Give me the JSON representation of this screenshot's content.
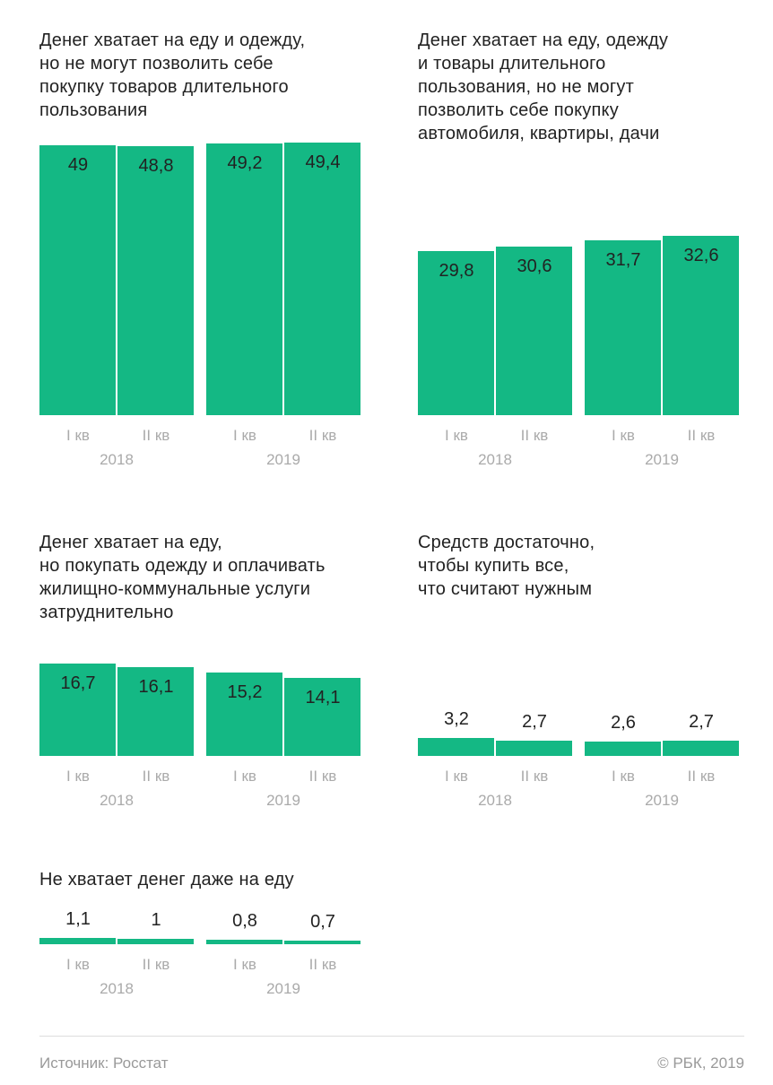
{
  "colors": {
    "bar": "#14b884",
    "text": "#222222",
    "axis_label": "#aaaaaa"
  },
  "chart_data": [
    {
      "type": "bar",
      "title": "Денег хватает на еду и одежду,\nно не могут позволить себе\nпокупку товаров длительного\nпользования",
      "categories": [
        "I кв",
        "II кв",
        "I кв",
        "II кв"
      ],
      "groups": [
        "2018",
        "2019"
      ],
      "values": [
        49,
        48.8,
        49.2,
        49.4
      ],
      "labels": [
        "49",
        "48,8",
        "49,2",
        "49,4"
      ]
    },
    {
      "type": "bar",
      "title": "Денег хватает на еду, одежду\nи  товары длительного\nпользования, но не могут\nпозволить себе покупку\nавтомобиля, квартиры, дачи",
      "categories": [
        "I кв",
        "II кв",
        "I кв",
        "II кв"
      ],
      "groups": [
        "2018",
        "2019"
      ],
      "values": [
        29.8,
        30.6,
        31.7,
        32.6
      ],
      "labels": [
        "29,8",
        "30,6",
        "31,7",
        "32,6"
      ]
    },
    {
      "type": "bar",
      "title": "Денег хватает на еду,\nно покупать одежду и оплачивать\nжилищно-коммунальные услуги\nзатруднительно",
      "categories": [
        "I кв",
        "II кв",
        "I кв",
        "II кв"
      ],
      "groups": [
        "2018",
        "2019"
      ],
      "values": [
        16.7,
        16.1,
        15.2,
        14.1
      ],
      "labels": [
        "16,7",
        "16,1",
        "15,2",
        "14,1"
      ]
    },
    {
      "type": "bar",
      "title": "Средств достаточно,\nчтобы купить все,\nчто считают нужным",
      "categories": [
        "I кв",
        "II кв",
        "I кв",
        "II кв"
      ],
      "groups": [
        "2018",
        "2019"
      ],
      "values": [
        3.2,
        2.7,
        2.6,
        2.7
      ],
      "labels": [
        "3,2",
        "2,7",
        "2,6",
        "2,7"
      ]
    },
    {
      "type": "bar",
      "title": "Не хватает денег даже на еду",
      "categories": [
        "I кв",
        "II кв",
        "I кв",
        "II кв"
      ],
      "groups": [
        "2018",
        "2019"
      ],
      "values": [
        1.1,
        1,
        0.8,
        0.7
      ],
      "labels": [
        "1,1",
        "1",
        "0,8",
        "0,7"
      ]
    }
  ],
  "footer": {
    "source": "Источник: Росстат",
    "copyright": "© РБК, 2019"
  }
}
